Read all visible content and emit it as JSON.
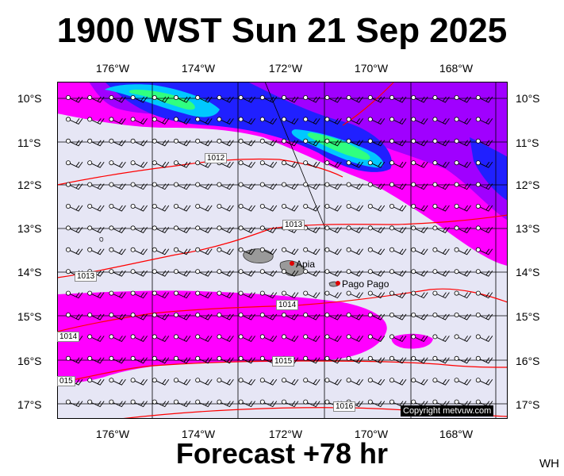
{
  "title": "1900 WST Sun 21 Sep 2025",
  "footer": "Forecast +78 hr",
  "initials": "WH",
  "copyright": "Copyright metvuw.com",
  "lon_labels": [
    "176°W",
    "174°W",
    "172°W",
    "170°W",
    "168°W"
  ],
  "lat_labels": [
    "10°S",
    "11°S",
    "12°S",
    "13°S",
    "14°S",
    "15°S",
    "16°S",
    "17°S"
  ],
  "places": [
    {
      "name": "Apia"
    },
    {
      "name": "Pago Pago"
    }
  ],
  "isobar_labels": [
    "1012",
    "1013",
    "1013",
    "1014",
    "1014",
    "1015",
    "015",
    "1016"
  ],
  "colors": {
    "background": "#e6e6f5",
    "isobar": "#ff0000",
    "wind_magenta": "#ff00ff",
    "wind_violet": "#a000ff",
    "wind_blue": "#2020ff",
    "wind_cyan": "#00c8ff",
    "wind_green": "#30ff80",
    "place_marker": "#e00000",
    "land": "#9a9a9a"
  },
  "icons": {
    "wind_barb": "station-circle-with-barb",
    "place_marker": "red-dot"
  }
}
